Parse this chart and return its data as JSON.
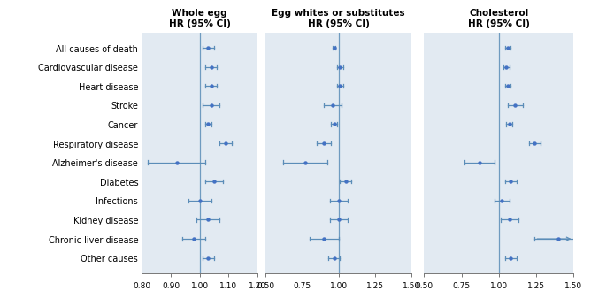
{
  "conditions": [
    "All causes of death",
    "Cardiovascular disease",
    "Heart disease",
    "Stroke",
    "Cancer",
    "Respiratory disease",
    "Alzheimer's disease",
    "Diabetes",
    "Infections",
    "Kidney disease",
    "Chronic liver disease",
    "Other causes"
  ],
  "panel1": {
    "title": "Whole egg\nHR (95% CI)",
    "xlim": [
      0.8,
      1.2
    ],
    "xticks": [
      0.8,
      0.9,
      1.0,
      1.1,
      1.2
    ],
    "xtick_labels": [
      "0.80",
      "0.90",
      "1.00",
      "1.10",
      "1.20"
    ],
    "ref_line": 1.0,
    "points": [
      1.03,
      1.04,
      1.04,
      1.04,
      1.03,
      1.09,
      0.92,
      1.05,
      1.0,
      1.03,
      0.98,
      1.03
    ],
    "lo": [
      1.01,
      1.02,
      1.02,
      1.01,
      1.02,
      1.07,
      0.82,
      1.02,
      0.96,
      0.99,
      0.94,
      1.01
    ],
    "hi": [
      1.05,
      1.06,
      1.06,
      1.07,
      1.04,
      1.11,
      1.02,
      1.08,
      1.04,
      1.07,
      1.02,
      1.05
    ],
    "arrow_hi": [
      false,
      false,
      false,
      false,
      false,
      false,
      false,
      false,
      false,
      false,
      false,
      false
    ]
  },
  "panel2": {
    "title": "Egg whites or substitutes\nHR (95% CI)",
    "xlim": [
      0.5,
      1.5
    ],
    "xticks": [
      0.5,
      0.75,
      1.0,
      1.25,
      1.5
    ],
    "xtick_labels": [
      "0.50",
      "0.75",
      "1.00",
      "1.25",
      "1.50"
    ],
    "ref_line": 1.0,
    "points": [
      0.97,
      1.01,
      1.01,
      0.96,
      0.97,
      0.9,
      0.77,
      1.05,
      1.0,
      1.0,
      0.9,
      0.97
    ],
    "lo": [
      0.96,
      0.99,
      0.99,
      0.9,
      0.95,
      0.85,
      0.62,
      1.01,
      0.94,
      0.94,
      0.8,
      0.93
    ],
    "hi": [
      0.98,
      1.03,
      1.03,
      1.02,
      0.99,
      0.95,
      0.92,
      1.09,
      1.06,
      1.06,
      1.0,
      1.01
    ],
    "arrow_hi": [
      false,
      false,
      false,
      false,
      false,
      false,
      false,
      false,
      false,
      false,
      false,
      false
    ]
  },
  "panel3": {
    "title": "Cholesterol\nHR (95% CI)",
    "xlim": [
      0.5,
      1.5
    ],
    "xticks": [
      0.5,
      0.75,
      1.0,
      1.25,
      1.5
    ],
    "xtick_labels": [
      "0.50",
      "0.75",
      "1.00",
      "1.25",
      "1.50"
    ],
    "ref_line": 1.0,
    "points": [
      1.06,
      1.05,
      1.06,
      1.11,
      1.07,
      1.24,
      0.87,
      1.08,
      1.02,
      1.07,
      1.4,
      1.08
    ],
    "lo": [
      1.04,
      1.03,
      1.04,
      1.06,
      1.05,
      1.2,
      0.77,
      1.04,
      0.97,
      1.01,
      1.24,
      1.04
    ],
    "hi": [
      1.08,
      1.07,
      1.08,
      1.16,
      1.09,
      1.28,
      0.97,
      1.12,
      1.07,
      1.13,
      1.6,
      1.12
    ],
    "arrow_hi": [
      false,
      false,
      false,
      false,
      false,
      false,
      false,
      false,
      false,
      false,
      true,
      false
    ]
  },
  "dot_color": "#4472C4",
  "line_color": "#5B8DB8",
  "ref_color": "#5B8DB8",
  "bg_color": "#E2EAF2",
  "outer_bg": "#FFFFFF",
  "label_fontsize": 7.0,
  "title_fontsize": 7.5,
  "tick_fontsize": 6.5
}
